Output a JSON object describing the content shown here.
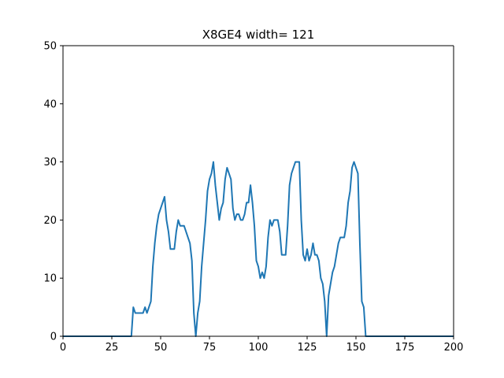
{
  "chart_data": {
    "type": "line",
    "title": "X8GE4 width= 121",
    "xlabel": "",
    "ylabel": "",
    "xlim": [
      0,
      200
    ],
    "ylim": [
      0,
      50
    ],
    "xticks": [
      0,
      25,
      50,
      75,
      100,
      125,
      150,
      175,
      200
    ],
    "yticks": [
      0,
      10,
      20,
      30,
      40,
      50
    ],
    "grid": false,
    "colors": {
      "line": "#1f77b4",
      "axes": "#000000",
      "background": "#ffffff"
    },
    "series": [
      {
        "x": [
          0,
          5,
          10,
          15,
          20,
          25,
          30,
          35,
          36,
          37,
          38,
          39,
          40,
          41,
          42,
          43,
          44,
          45,
          46,
          47,
          48,
          49,
          50,
          51,
          52,
          53,
          54,
          55,
          56,
          57,
          58,
          59,
          60,
          61,
          62,
          63,
          64,
          65,
          66,
          67,
          68,
          69,
          70,
          71,
          72,
          73,
          74,
          75,
          76,
          77,
          78,
          79,
          80,
          81,
          82,
          83,
          84,
          85,
          86,
          87,
          88,
          89,
          90,
          91,
          92,
          93,
          94,
          95,
          96,
          97,
          98,
          99,
          100,
          101,
          102,
          103,
          104,
          105,
          106,
          107,
          108,
          109,
          110,
          111,
          112,
          113,
          114,
          115,
          116,
          117,
          118,
          119,
          120,
          121,
          122,
          123,
          124,
          125,
          126,
          127,
          128,
          129,
          130,
          131,
          132,
          133,
          134,
          135,
          136,
          137,
          138,
          139,
          140,
          141,
          142,
          143,
          144,
          145,
          146,
          147,
          148,
          149,
          150,
          151,
          152,
          153,
          154,
          155,
          156,
          157,
          160,
          170,
          180,
          190,
          200
        ],
        "y": [
          0,
          0,
          0,
          0,
          0,
          0,
          0,
          0,
          5,
          4,
          4,
          4,
          4,
          4,
          5,
          4,
          5,
          6,
          12,
          16,
          19,
          21,
          22,
          23,
          24,
          20,
          18,
          15,
          15,
          15,
          18,
          20,
          19,
          19,
          19,
          18,
          17,
          16,
          13,
          4,
          0,
          4,
          6,
          12,
          16,
          20,
          25,
          27,
          28,
          30,
          26,
          23,
          20,
          22,
          23,
          27,
          29,
          28,
          27,
          22,
          20,
          21,
          21,
          20,
          20,
          21,
          23,
          23,
          26,
          23,
          19,
          13,
          12,
          10,
          11,
          10,
          12,
          17,
          20,
          19,
          20,
          20,
          20,
          18,
          14,
          14,
          14,
          19,
          26,
          28,
          29,
          30,
          30,
          30,
          20,
          14,
          13,
          15,
          13,
          14,
          16,
          14,
          14,
          13,
          10,
          9,
          6,
          0,
          7,
          9,
          11,
          12,
          14,
          16,
          17,
          17,
          17,
          19,
          23,
          25,
          29,
          30,
          29,
          28,
          16,
          6,
          5,
          0,
          0,
          0,
          0,
          0,
          0,
          0,
          0
        ]
      }
    ]
  }
}
